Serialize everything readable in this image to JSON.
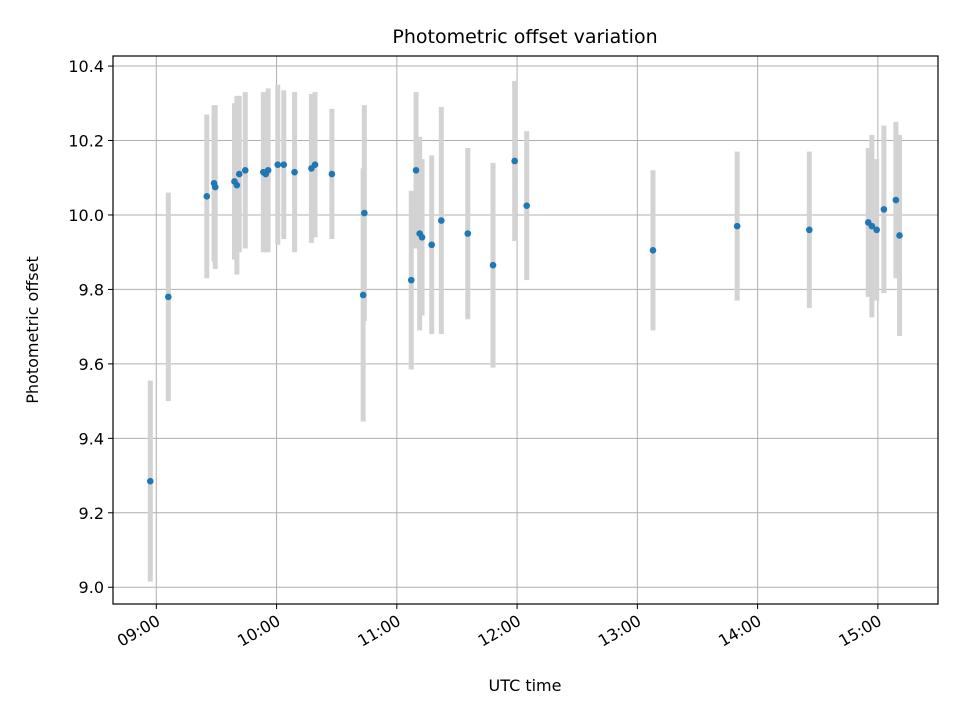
{
  "chart_data": {
    "type": "scatter",
    "title": "Photometric offset variation",
    "xlabel": "UTC time",
    "ylabel": "Photometric offset",
    "x_ticks": [
      "09:00",
      "10:00",
      "11:00",
      "12:00",
      "13:00",
      "14:00",
      "15:00"
    ],
    "x_tick_values": [
      9.0,
      10.0,
      11.0,
      12.0,
      13.0,
      14.0,
      15.0
    ],
    "y_ticks": [
      "9.0",
      "9.2",
      "9.4",
      "9.6",
      "9.8",
      "10.0",
      "10.2",
      "10.4"
    ],
    "y_tick_values": [
      9.0,
      9.2,
      9.4,
      9.6,
      9.8,
      10.0,
      10.2,
      10.4
    ],
    "xlim": [
      8.64,
      15.5
    ],
    "ylim": [
      8.955,
      10.427
    ],
    "grid": true,
    "x_unit": "hours UTC",
    "point_color": "#1f77b4",
    "errorbar_color": "#d3d3d3",
    "points": [
      {
        "x": 8.95,
        "y": 9.285,
        "err": 0.27
      },
      {
        "x": 9.1,
        "y": 9.78,
        "err": 0.28
      },
      {
        "x": 9.42,
        "y": 10.05,
        "err": 0.22
      },
      {
        "x": 9.48,
        "y": 10.085,
        "err": 0.21
      },
      {
        "x": 9.49,
        "y": 10.075,
        "err": 0.22
      },
      {
        "x": 9.65,
        "y": 10.09,
        "err": 0.21
      },
      {
        "x": 9.67,
        "y": 10.08,
        "err": 0.24
      },
      {
        "x": 9.69,
        "y": 10.11,
        "err": 0.21
      },
      {
        "x": 9.74,
        "y": 10.12,
        "err": 0.21
      },
      {
        "x": 9.89,
        "y": 10.115,
        "err": 0.215
      },
      {
        "x": 9.91,
        "y": 10.11,
        "err": 0.21
      },
      {
        "x": 9.93,
        "y": 10.12,
        "err": 0.22
      },
      {
        "x": 10.01,
        "y": 10.135,
        "err": 0.215
      },
      {
        "x": 10.06,
        "y": 10.135,
        "err": 0.2
      },
      {
        "x": 10.15,
        "y": 10.115,
        "err": 0.215
      },
      {
        "x": 10.29,
        "y": 10.125,
        "err": 0.2
      },
      {
        "x": 10.32,
        "y": 10.135,
        "err": 0.195
      },
      {
        "x": 10.46,
        "y": 10.11,
        "err": 0.175
      },
      {
        "x": 10.72,
        "y": 9.785,
        "err": 0.34
      },
      {
        "x": 10.73,
        "y": 10.005,
        "err": 0.29
      },
      {
        "x": 11.12,
        "y": 9.825,
        "err": 0.24
      },
      {
        "x": 11.16,
        "y": 10.12,
        "err": 0.21
      },
      {
        "x": 11.19,
        "y": 9.95,
        "err": 0.26
      },
      {
        "x": 11.21,
        "y": 9.94,
        "err": 0.21
      },
      {
        "x": 11.29,
        "y": 9.92,
        "err": 0.24
      },
      {
        "x": 11.37,
        "y": 9.985,
        "err": 0.305
      },
      {
        "x": 11.59,
        "y": 9.95,
        "err": 0.23
      },
      {
        "x": 11.8,
        "y": 9.865,
        "err": 0.275
      },
      {
        "x": 11.98,
        "y": 10.145,
        "err": 0.215
      },
      {
        "x": 12.08,
        "y": 10.025,
        "err": 0.2
      },
      {
        "x": 13.13,
        "y": 9.905,
        "err": 0.215
      },
      {
        "x": 13.83,
        "y": 9.97,
        "err": 0.2
      },
      {
        "x": 14.43,
        "y": 9.96,
        "err": 0.21
      },
      {
        "x": 14.92,
        "y": 9.98,
        "err": 0.2
      },
      {
        "x": 14.95,
        "y": 9.97,
        "err": 0.245
      },
      {
        "x": 14.99,
        "y": 9.96,
        "err": 0.19
      },
      {
        "x": 15.05,
        "y": 10.015,
        "err": 0.225
      },
      {
        "x": 15.15,
        "y": 10.04,
        "err": 0.21
      },
      {
        "x": 15.18,
        "y": 9.945,
        "err": 0.27
      }
    ]
  }
}
